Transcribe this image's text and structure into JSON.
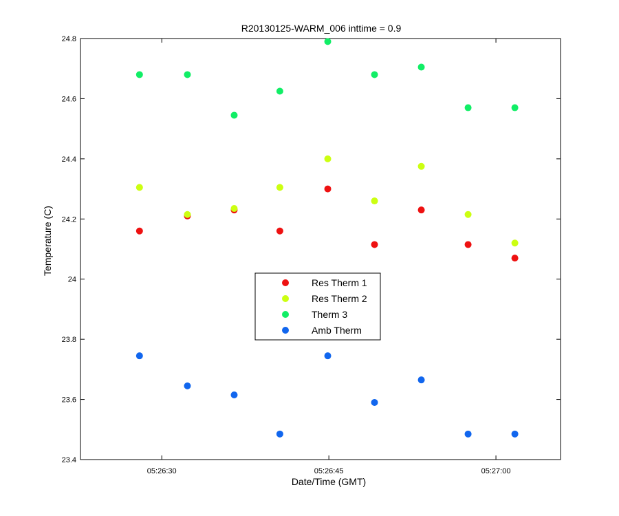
{
  "chart_data": {
    "type": "scatter",
    "title": "R20130125-WARM_006 inttime = 0.9",
    "xlabel": "Date/Time (GMT)",
    "ylabel": "Temperature (C)",
    "x_unit": "time",
    "x_range": [
      "05:26:22.7",
      "05:27:05.8"
    ],
    "xlim": [
      "05:26:22.7",
      "05:27:05.8"
    ],
    "ylim": [
      23.4,
      24.8
    ],
    "x_ticks": [
      "05:26:30",
      "05:26:45",
      "05:27:00"
    ],
    "y_ticks": [
      {
        "value": 23.4,
        "label": "23.4"
      },
      {
        "value": 23.6,
        "label": "23.6"
      },
      {
        "value": 23.8,
        "label": "23.8"
      },
      {
        "value": 24.0,
        "label": "24"
      },
      {
        "value": 24.2,
        "label": "24.2"
      },
      {
        "value": 24.4,
        "label": "24.4"
      },
      {
        "value": 24.6,
        "label": "24.6"
      },
      {
        "value": 24.8,
        "label": "24.8"
      }
    ],
    "x": [
      "05:26:28",
      "05:26:32.3",
      "05:26:36.5",
      "05:26:40.6",
      "05:26:44.9",
      "05:26:49.1",
      "05:26:53.3",
      "05:26:57.5",
      "05:27:01.7"
    ],
    "series": [
      {
        "name": "Res Therm 1",
        "color": "#ee1111",
        "values": [
          24.16,
          24.21,
          24.23,
          24.16,
          24.3,
          24.115,
          24.23,
          24.115,
          24.07
        ]
      },
      {
        "name": "Res Therm 2",
        "color": "#ccff11",
        "values": [
          24.305,
          24.215,
          24.235,
          24.305,
          24.4,
          24.26,
          24.375,
          24.215,
          24.12
        ]
      },
      {
        "name": "Therm 3",
        "color": "#11ee66",
        "values": [
          24.68,
          24.68,
          24.545,
          24.625,
          24.79,
          24.68,
          24.705,
          24.57,
          24.57
        ]
      },
      {
        "name": "Amb Therm",
        "color": "#1166ee",
        "values": [
          23.745,
          23.645,
          23.615,
          23.485,
          23.745,
          23.59,
          23.665,
          23.485,
          23.485
        ]
      }
    ],
    "legend": "center",
    "grid": false
  }
}
